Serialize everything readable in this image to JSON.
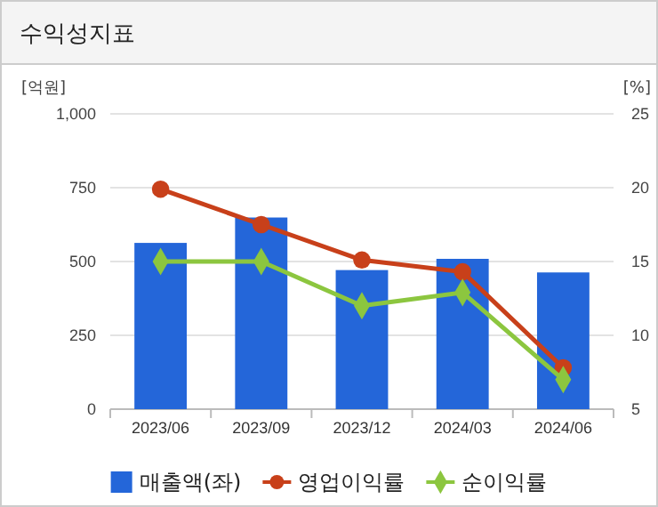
{
  "chart_data": {
    "type": "bar",
    "title": "수익성지표",
    "ylabel": "[억원]",
    "y2label": "[%]",
    "categories": [
      "2023/06",
      "2023/09",
      "2023/12",
      "2024/03",
      "2024/06"
    ],
    "series": [
      {
        "name": "매출액(좌)",
        "color": "#2466d9",
        "values": [
          563,
          649,
          471,
          509,
          463
        ]
      },
      {
        "name": "영업이익률",
        "type": "line",
        "axis": "y2",
        "color": "#c8401a",
        "marker": "circle",
        "values": [
          19.9,
          17.5,
          15.1,
          14.3,
          7.8
        ]
      },
      {
        "name": "순이익률",
        "type": "line",
        "axis": "y2",
        "color": "#8cc63f",
        "marker": "diamond",
        "values": [
          15.0,
          15.0,
          12.0,
          12.9,
          7.0
        ]
      }
    ],
    "ylim": [
      0,
      1000
    ],
    "yticks": [
      0,
      250,
      500,
      750,
      {
        "value": 1000,
        "label": "1,000"
      }
    ],
    "y2lim": [
      5,
      25
    ],
    "y2ticks": [
      5,
      10,
      15,
      20,
      25
    ],
    "grid": "y",
    "legend": "bottom"
  }
}
